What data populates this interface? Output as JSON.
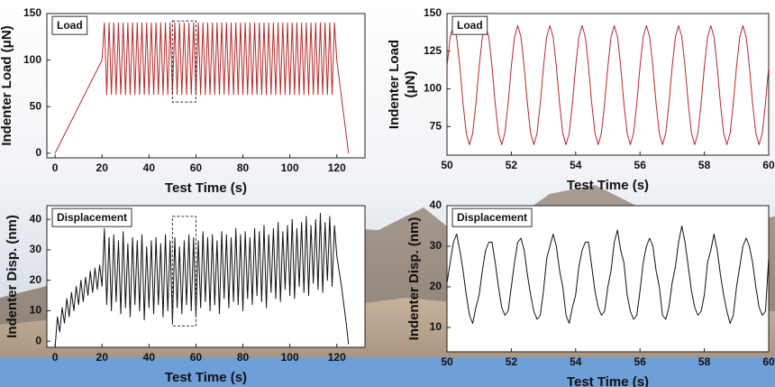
{
  "chart_data": [
    {
      "type": "line",
      "annotation": "Load",
      "xlabel": "Test Time (s)",
      "ylabel": "Indenter Load (μN)",
      "color": "#b52a2a",
      "xlim": [
        -3.5,
        132
      ],
      "xticks": [
        0,
        20,
        40,
        60,
        80,
        100,
        120
      ],
      "ylim": [
        -5,
        150
      ],
      "yticks": [
        0,
        50,
        100,
        150
      ],
      "highlight": {
        "x": [
          50,
          60
        ],
        "y": [
          55,
          142
        ]
      },
      "x": [
        0,
        20,
        21,
        22,
        23,
        24,
        25,
        26,
        27,
        28,
        29,
        30,
        31,
        32,
        33,
        34,
        35,
        36,
        37,
        38,
        39,
        40,
        41,
        42,
        43,
        44,
        45,
        46,
        47,
        48,
        49,
        50,
        51,
        52,
        53,
        54,
        55,
        56,
        57,
        58,
        59,
        60,
        61,
        62,
        63,
        64,
        65,
        66,
        67,
        68,
        69,
        70,
        71,
        72,
        73,
        74,
        75,
        76,
        77,
        78,
        79,
        80,
        81,
        82,
        83,
        84,
        85,
        86,
        87,
        88,
        89,
        90,
        91,
        92,
        93,
        94,
        95,
        96,
        97,
        98,
        99,
        100,
        101,
        102,
        103,
        104,
        105,
        106,
        107,
        108,
        109,
        110,
        111,
        112,
        113,
        114,
        115,
        116,
        117,
        118,
        119,
        120,
        125
      ],
      "values": [
        0,
        100,
        140,
        63,
        140,
        63,
        140,
        63,
        140,
        63,
        140,
        63,
        140,
        63,
        140,
        63,
        140,
        63,
        140,
        63,
        140,
        63,
        140,
        63,
        140,
        63,
        140,
        63,
        140,
        63,
        140,
        63,
        140,
        63,
        140,
        63,
        140,
        63,
        140,
        63,
        140,
        63,
        140,
        63,
        140,
        63,
        140,
        63,
        140,
        63,
        140,
        63,
        140,
        63,
        140,
        63,
        140,
        63,
        140,
        63,
        140,
        63,
        140,
        63,
        140,
        63,
        140,
        63,
        140,
        63,
        140,
        63,
        140,
        63,
        140,
        63,
        140,
        63,
        140,
        63,
        140,
        63,
        140,
        63,
        140,
        63,
        140,
        63,
        140,
        63,
        140,
        63,
        140,
        63,
        140,
        63,
        140,
        63,
        140,
        63,
        140,
        100,
        0
      ]
    },
    {
      "type": "line",
      "annotation": "Load",
      "xlabel": "Test Time (s)",
      "ylabel": [
        "Indenter Load",
        "(μN)"
      ],
      "color": "#b52a2a",
      "xlim": [
        50,
        60
      ],
      "xticks": [
        50,
        52,
        54,
        56,
        58,
        60
      ],
      "ylim": [
        56,
        150
      ],
      "yticks": [
        75,
        100,
        125,
        150
      ],
      "x": [
        50,
        50.1,
        50.2,
        50.3,
        50.4,
        50.5,
        50.6,
        50.7,
        50.8,
        50.9,
        51,
        51.1,
        51.2,
        51.3,
        51.4,
        51.5,
        51.6,
        51.7,
        51.8,
        51.9,
        52,
        52.1,
        52.2,
        52.3,
        52.4,
        52.5,
        52.6,
        52.7,
        52.8,
        52.9,
        53,
        53.1,
        53.2,
        53.3,
        53.4,
        53.5,
        53.6,
        53.7,
        53.8,
        53.9,
        54,
        54.1,
        54.2,
        54.3,
        54.4,
        54.5,
        54.6,
        54.7,
        54.8,
        54.9,
        55,
        55.1,
        55.2,
        55.3,
        55.4,
        55.5,
        55.6,
        55.7,
        55.8,
        55.9,
        56,
        56.1,
        56.2,
        56.3,
        56.4,
        56.5,
        56.6,
        56.7,
        56.8,
        56.9,
        57,
        57.1,
        57.2,
        57.3,
        57.4,
        57.5,
        57.6,
        57.7,
        57.8,
        57.9,
        58,
        58.1,
        58.2,
        58.3,
        58.4,
        58.5,
        58.6,
        58.7,
        58.8,
        58.9,
        59,
        59.1,
        59.2,
        59.3,
        59.4,
        59.5,
        59.6,
        59.7,
        59.8,
        59.9,
        60
      ],
      "values": [
        114.7,
        134.5,
        142,
        134.5,
        114.7,
        90.3,
        70.5,
        63,
        70.5,
        90.3,
        114.7,
        134.5,
        142,
        134.5,
        114.7,
        90.3,
        70.5,
        63,
        70.5,
        90.3,
        114.7,
        134.5,
        142,
        134.5,
        114.7,
        90.3,
        70.5,
        63,
        70.5,
        90.3,
        114.7,
        134.5,
        142,
        134.5,
        114.7,
        90.3,
        70.5,
        63,
        70.5,
        90.3,
        114.7,
        134.5,
        142,
        134.5,
        114.7,
        90.3,
        70.5,
        63,
        70.5,
        90.3,
        114.7,
        134.5,
        142,
        134.5,
        114.7,
        90.3,
        70.5,
        63,
        70.5,
        90.3,
        114.7,
        134.5,
        142,
        134.5,
        114.7,
        90.3,
        70.5,
        63,
        70.5,
        90.3,
        114.7,
        134.5,
        142,
        134.5,
        114.7,
        90.3,
        70.5,
        63,
        70.5,
        90.3,
        114.7,
        134.5,
        142,
        134.5,
        114.7,
        90.3,
        70.5,
        63,
        70.5,
        90.3,
        114.7,
        134.5,
        142,
        134.5,
        114.7,
        90.3,
        70.5,
        63,
        70.5,
        90.3,
        114.7
      ]
    },
    {
      "type": "line",
      "annotation": "Displacement",
      "xlabel": "Test Time (s)",
      "ylabel": "Indenter Disp. (nm)",
      "color": "#111111",
      "xlim": [
        -3.5,
        132
      ],
      "xticks": [
        0,
        20,
        40,
        60,
        80,
        100,
        120
      ],
      "ylim": [
        -2,
        44.5
      ],
      "yticks": [
        0,
        10,
        20,
        30,
        40
      ],
      "highlight": {
        "x": [
          50,
          60
        ],
        "y": [
          5,
          41
        ]
      },
      "x": [
        0,
        1,
        2,
        3,
        4,
        5,
        6,
        7,
        8,
        9,
        10,
        11,
        12,
        13,
        14,
        15,
        16,
        17,
        18,
        19,
        20,
        21,
        22,
        23,
        24,
        25,
        26,
        27,
        28,
        29,
        30,
        31,
        32,
        33,
        34,
        35,
        36,
        37,
        38,
        39,
        40,
        41,
        42,
        43,
        44,
        45,
        46,
        47,
        48,
        49,
        50,
        51,
        52,
        53,
        54,
        55,
        56,
        57,
        58,
        59,
        60,
        61,
        62,
        63,
        64,
        65,
        66,
        67,
        68,
        69,
        70,
        71,
        72,
        73,
        74,
        75,
        76,
        77,
        78,
        79,
        80,
        81,
        82,
        83,
        84,
        85,
        86,
        87,
        88,
        89,
        90,
        91,
        92,
        93,
        94,
        95,
        96,
        97,
        98,
        99,
        100,
        101,
        102,
        103,
        104,
        105,
        106,
        107,
        108,
        109,
        110,
        111,
        112,
        113,
        114,
        115,
        116,
        117,
        118,
        119,
        120,
        122,
        124,
        125
      ],
      "values": [
        -2,
        8,
        3,
        11,
        6,
        14,
        8,
        16,
        10,
        18,
        12,
        20,
        13,
        21,
        15,
        23,
        16,
        24,
        17,
        25,
        18,
        37,
        12,
        34,
        10,
        35,
        13,
        33,
        9,
        36,
        11,
        32,
        8,
        34,
        12,
        33,
        10,
        35,
        7,
        31,
        11,
        33,
        9,
        34,
        12,
        32,
        8,
        35,
        10,
        33,
        6,
        34,
        11,
        31,
        9,
        33,
        12,
        35,
        10,
        34,
        8,
        33,
        11,
        36,
        13,
        34,
        10,
        35,
        12,
        33,
        9,
        36,
        14,
        35,
        11,
        34,
        13,
        37,
        12,
        35,
        10,
        36,
        14,
        34,
        12,
        37,
        15,
        36,
        13,
        38,
        11,
        35,
        16,
        37,
        14,
        39,
        13,
        36,
        17,
        38,
        15,
        40,
        14,
        37,
        18,
        39,
        16,
        41,
        15,
        38,
        19,
        40,
        17,
        42,
        16,
        39,
        20,
        41,
        18,
        38,
        28,
        18,
        6,
        -1
      ]
    },
    {
      "type": "line",
      "annotation": "Displacement",
      "xlabel": "Test Time (s)",
      "ylabel": "Indenter Disp. (nm)",
      "color": "#111111",
      "xlim": [
        50,
        60
      ],
      "xticks": [
        50,
        52,
        54,
        56,
        58,
        60
      ],
      "ylim": [
        4,
        40
      ],
      "yticks": [
        10,
        20,
        30,
        40
      ],
      "x": [
        50,
        50.1,
        50.2,
        50.3,
        50.4,
        50.5,
        50.6,
        50.7,
        50.8,
        50.9,
        51,
        51.1,
        51.2,
        51.3,
        51.4,
        51.5,
        51.6,
        51.7,
        51.8,
        51.9,
        52,
        52.1,
        52.2,
        52.3,
        52.4,
        52.5,
        52.6,
        52.7,
        52.8,
        52.9,
        53,
        53.1,
        53.2,
        53.3,
        53.4,
        53.5,
        53.6,
        53.7,
        53.8,
        53.9,
        54,
        54.1,
        54.2,
        54.3,
        54.4,
        54.5,
        54.6,
        54.7,
        54.8,
        54.9,
        55,
        55.1,
        55.2,
        55.3,
        55.4,
        55.5,
        55.6,
        55.7,
        55.8,
        55.9,
        56,
        56.1,
        56.2,
        56.3,
        56.4,
        56.5,
        56.6,
        56.7,
        56.8,
        56.9,
        57,
        57.1,
        57.2,
        57.3,
        57.4,
        57.5,
        57.6,
        57.7,
        57.8,
        57.9,
        58,
        58.1,
        58.2,
        58.3,
        58.4,
        58.5,
        58.6,
        58.7,
        58.8,
        58.9,
        59,
        59.1,
        59.2,
        59.3,
        59.4,
        59.5,
        59.6,
        59.7,
        59.8,
        59.9,
        60
      ],
      "values": [
        21,
        26,
        31,
        33,
        29,
        24,
        18,
        13,
        11,
        15,
        18,
        24,
        29,
        31,
        31,
        26,
        20,
        15,
        13,
        14,
        20,
        26,
        31,
        32,
        29,
        23,
        18,
        14,
        12,
        13,
        19,
        27,
        30,
        33,
        30,
        24,
        20,
        13,
        11,
        15,
        18,
        25,
        29,
        31,
        31,
        25,
        19,
        15,
        13,
        14,
        20,
        24,
        31,
        34,
        29,
        26,
        18,
        14,
        12,
        13,
        19,
        26,
        30,
        32,
        30,
        24,
        20,
        13,
        12,
        15,
        21,
        25,
        31,
        35,
        31,
        25,
        19,
        15,
        13,
        14,
        18,
        26,
        29,
        33,
        29,
        23,
        18,
        14,
        11,
        13,
        20,
        25,
        30,
        32,
        30,
        26,
        20,
        15,
        13,
        14,
        27
      ]
    }
  ]
}
